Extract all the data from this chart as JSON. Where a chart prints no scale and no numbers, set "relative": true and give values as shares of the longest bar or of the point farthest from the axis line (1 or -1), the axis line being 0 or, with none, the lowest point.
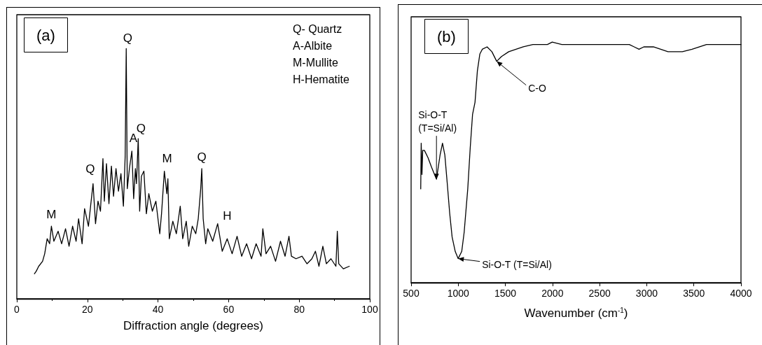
{
  "chart_data": [
    {
      "type": "line",
      "title": "(a)",
      "xlabel": "Diffraction angle (degrees)",
      "relative": true,
      "xlim": [
        0,
        100
      ],
      "xticks": [
        0,
        20,
        40,
        60,
        80,
        100
      ],
      "grid": false,
      "marker": "none",
      "line_style": "solid",
      "series": [
        {
          "color": "#000000",
          "x": [
            5.0,
            5.5,
            6.2,
            7.3,
            7.9,
            8.6,
            9.3,
            9.8,
            10.5,
            11.7,
            12.7,
            13.8,
            14.8,
            15.8,
            16.8,
            17.5,
            18.5,
            19.2,
            20.3,
            20.9,
            21.6,
            22.3,
            23.0,
            23.7,
            24.4,
            24.8,
            25.4,
            26.1,
            26.8,
            27.4,
            28.1,
            28.8,
            29.5,
            30.2,
            30.7,
            31.0,
            31.3,
            31.9,
            32.6,
            33.1,
            33.6,
            33.9,
            34.4,
            34.8,
            35.3,
            36.0,
            36.7,
            37.4,
            38.4,
            39.4,
            40.5,
            41.0,
            41.8,
            42.5,
            42.8,
            43.2,
            44.2,
            45.2,
            46.3,
            47.0,
            48.0,
            48.7,
            49.7,
            50.7,
            51.4,
            52.1,
            52.4,
            52.8,
            53.5,
            54.1,
            55.5,
            56.9,
            58.2,
            59.6,
            61.0,
            62.4,
            63.7,
            65.1,
            66.5,
            67.8,
            69.2,
            69.7,
            70.6,
            71.9,
            73.3,
            74.7,
            76.0,
            77.1,
            77.8,
            79.1,
            80.8,
            82.2,
            83.6,
            84.6,
            85.6,
            86.7,
            87.7,
            89.0,
            90.4,
            90.8,
            91.2,
            92.5,
            94.2
          ],
          "values": [
            0.1,
            0.11,
            0.13,
            0.15,
            0.18,
            0.24,
            0.22,
            0.29,
            0.23,
            0.27,
            0.22,
            0.28,
            0.21,
            0.29,
            0.23,
            0.32,
            0.22,
            0.36,
            0.29,
            0.37,
            0.46,
            0.3,
            0.39,
            0.35,
            0.56,
            0.39,
            0.54,
            0.38,
            0.53,
            0.41,
            0.52,
            0.43,
            0.5,
            0.37,
            0.57,
            1,
            0.44,
            0.52,
            0.59,
            0.4,
            0.52,
            0.46,
            0.64,
            0.35,
            0.49,
            0.51,
            0.34,
            0.42,
            0.35,
            0.39,
            0.26,
            0.34,
            0.51,
            0.42,
            0.48,
            0.24,
            0.31,
            0.26,
            0.37,
            0.24,
            0.31,
            0.21,
            0.29,
            0.26,
            0.32,
            0.44,
            0.52,
            0.32,
            0.22,
            0.28,
            0.23,
            0.3,
            0.19,
            0.24,
            0.18,
            0.25,
            0.17,
            0.22,
            0.16,
            0.22,
            0.17,
            0.28,
            0.18,
            0.21,
            0.15,
            0.23,
            0.17,
            0.25,
            0.17,
            0.16,
            0.17,
            0.14,
            0.16,
            0.19,
            0.13,
            0.21,
            0.14,
            0.16,
            0.13,
            0.27,
            0.14,
            0.12,
            0.13
          ]
        }
      ],
      "annotations": [
        "Q- Quartz",
        "A-Albite",
        "M-Mullite",
        "H-Hematite",
        {
          "text": "Q",
          "x": 31.0,
          "y": 1
        },
        {
          "text": "Q",
          "x": 21.6,
          "y": 0.46
        },
        {
          "text": "A",
          "x": 32.6,
          "y": 0.59
        },
        {
          "text": "Q",
          "x": 34.4,
          "y": 0.64
        },
        {
          "text": "M",
          "x": 41.8,
          "y": 0.51
        },
        {
          "text": "Q",
          "x": 52.4,
          "y": 0.52
        },
        {
          "text": "M",
          "x": 9.8,
          "y": 0.29
        },
        {
          "text": "H",
          "x": 59.6,
          "y": 0.24
        }
      ]
    },
    {
      "type": "line",
      "title": "(b)",
      "xlabel": "Wavenumber (cm$^{-1}$)",
      "relative": true,
      "xlim": [
        500,
        4000
      ],
      "xticks": [
        500,
        1000,
        1500,
        2000,
        2500,
        3000,
        3500,
        4000
      ],
      "grid": false,
      "marker": "none",
      "line_style": "solid",
      "series": [
        {
          "color": "#000000",
          "x": [
            602,
            607,
            615,
            623,
            641,
            679,
            717,
            769,
            807,
            833,
            858,
            884,
            909,
            935,
            968,
            999,
            1037,
            1063,
            1101,
            1127,
            1152,
            1178,
            1203,
            1229,
            1255,
            1306,
            1357,
            1408,
            1459,
            1536,
            1613,
            1690,
            1792,
            1946,
            1997,
            2099,
            2200,
            2355,
            2457,
            2610,
            2815,
            2867,
            2918,
            2969,
            3071,
            3225,
            3378,
            3481,
            3634,
            3788,
            4000
          ],
          "values": [
            0.39,
            0.58,
            0.45,
            0.55,
            0.55,
            0.52,
            0.48,
            0.43,
            0.53,
            0.58,
            0.53,
            0.41,
            0.29,
            0.19,
            0.13,
            0.1,
            0.13,
            0.21,
            0.39,
            0.56,
            0.7,
            0.75,
            0.88,
            0.95,
            0.97,
            0.98,
            0.96,
            0.92,
            0.94,
            0.96,
            0.97,
            0.98,
            0.99,
            0.99,
            1,
            0.99,
            0.99,
            0.99,
            0.99,
            0.99,
            0.99,
            0.98,
            0.97,
            0.98,
            0.98,
            0.96,
            0.96,
            0.97,
            0.99,
            0.99,
            0.99
          ]
        }
      ],
      "annotations": [
        {
          "text": "C-O",
          "x": 1408,
          "y": 0.92
        },
        {
          "text": "Si-O-T (T=Si/Al)",
          "x": 999,
          "y": 0.1
        },
        {
          "text": "Si-O-T\n(T=Si/Al)",
          "x": 769,
          "y": 0.43
        }
      ]
    }
  ]
}
